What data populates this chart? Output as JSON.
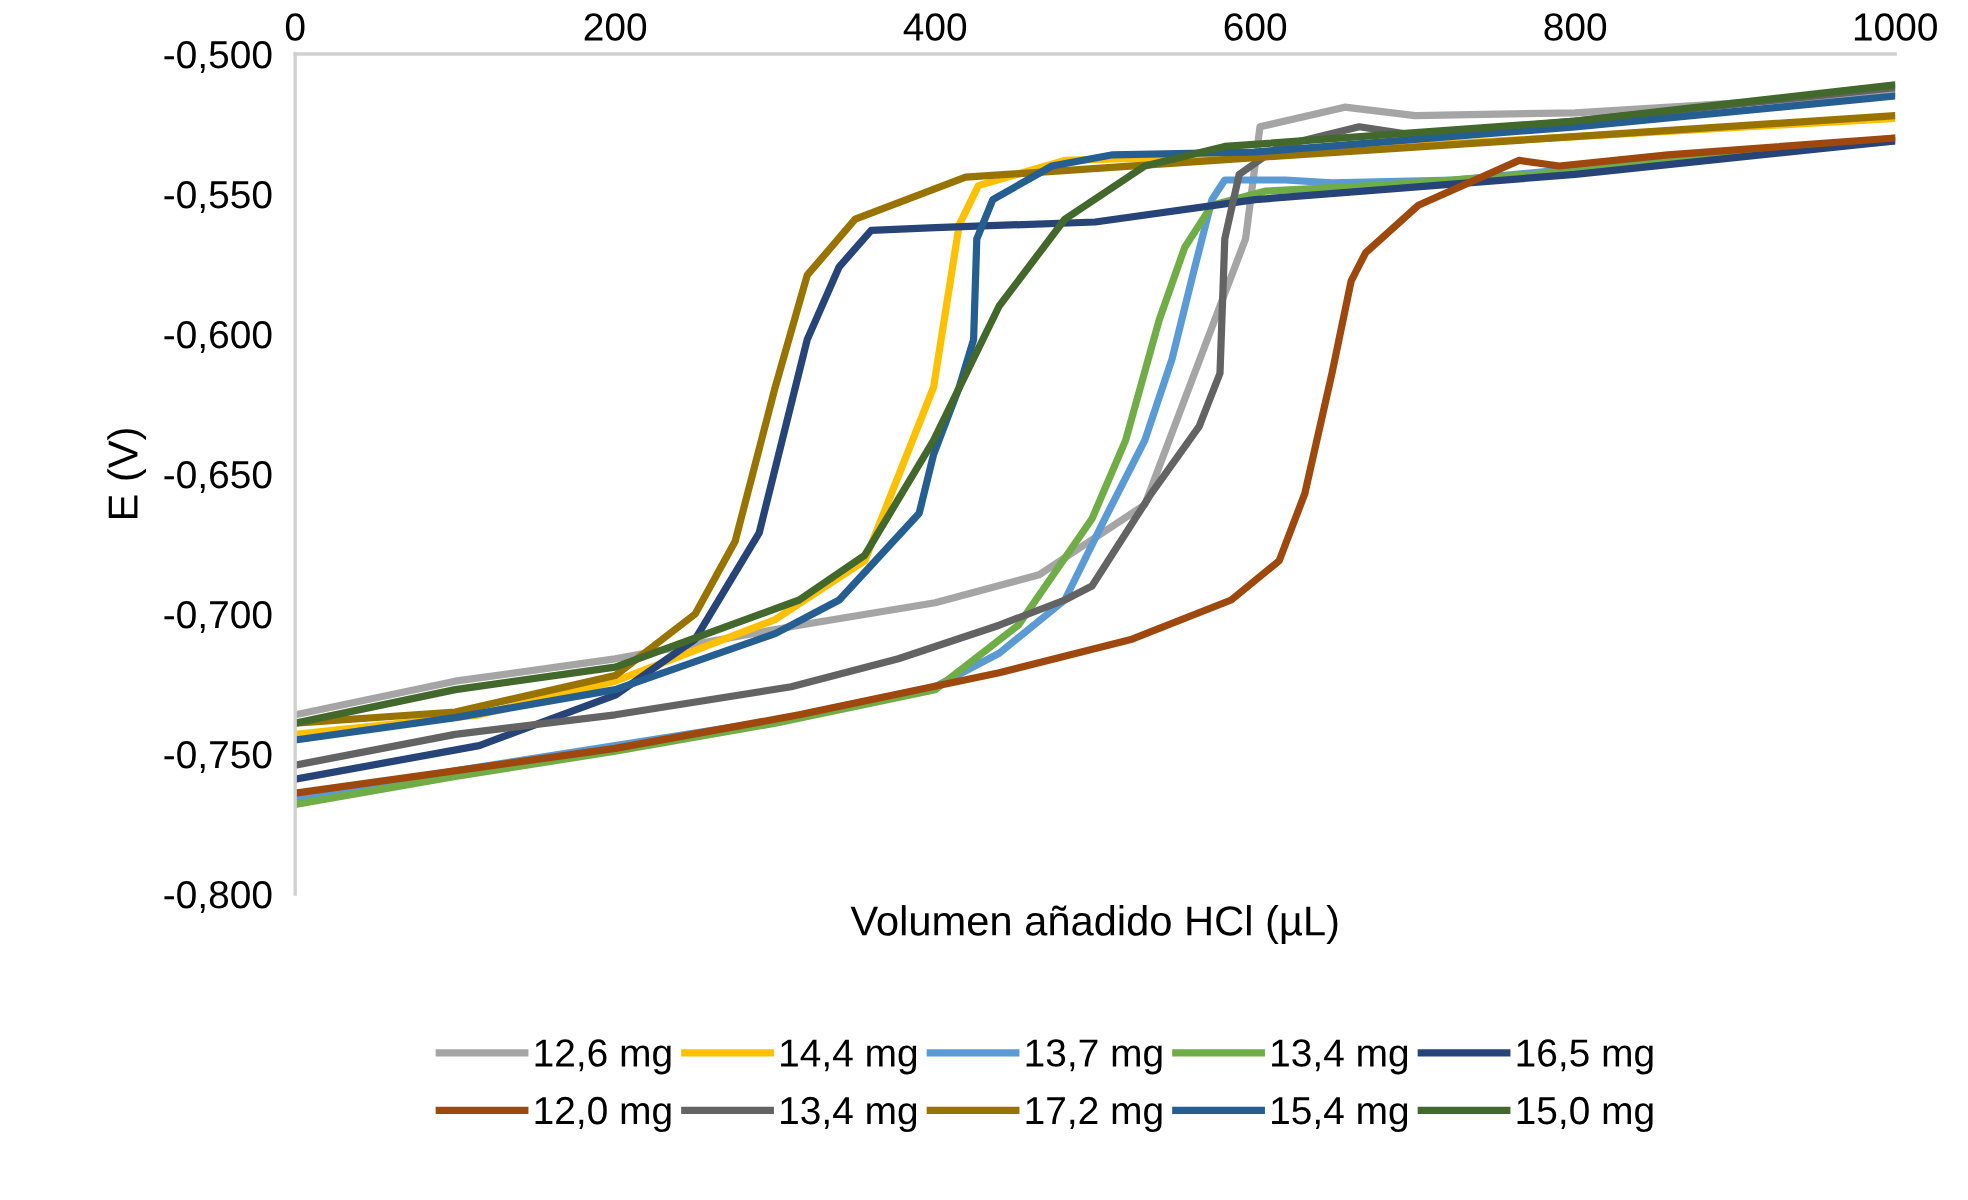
{
  "chart_data": {
    "type": "line",
    "xlabel": "Volumen añadido HCl (µL)",
    "ylabel": "E (V)",
    "xlim": [
      0,
      1000
    ],
    "xticks": [
      0,
      200,
      400,
      600,
      800,
      1000
    ],
    "ylim": [
      -0.8,
      -0.5
    ],
    "yticks": [
      {
        "value": -0.8,
        "label": "-0,800"
      },
      {
        "value": -0.75,
        "label": "-0,750"
      },
      {
        "value": -0.7,
        "label": "-0,700"
      },
      {
        "value": -0.65,
        "label": "-0,650"
      },
      {
        "value": -0.6,
        "label": "-0,600"
      },
      {
        "value": -0.55,
        "label": "-0,550"
      },
      {
        "value": -0.5,
        "label": "-0,500"
      }
    ],
    "grid": false,
    "legend": "bottom",
    "marker": "none",
    "line_style": "solid",
    "series": [
      {
        "name": "12,6 mg",
        "color": "#a5a5a5",
        "x": [
          0,
          100,
          200,
          315,
          400,
          465,
          531,
          578,
          594,
          603,
          656,
          700,
          800,
          1000
        ],
        "values": [
          -0.736,
          -0.724,
          -0.716,
          -0.704,
          -0.696,
          -0.686,
          -0.661,
          -0.59,
          -0.566,
          -0.526,
          -0.519,
          -0.522,
          -0.521,
          -0.514
        ]
      },
      {
        "name": "14,4 mg",
        "color": "#ffc000",
        "x": [
          0,
          115,
          200,
          300,
          356,
          399,
          415,
          427,
          481,
          600,
          1000
        ],
        "values": [
          -0.743,
          -0.736,
          -0.724,
          -0.702,
          -0.681,
          -0.619,
          -0.561,
          -0.547,
          -0.538,
          -0.536,
          -0.523
        ]
      },
      {
        "name": "13,7 mg",
        "color": "#5b9bd5",
        "x": [
          0,
          100,
          200,
          300,
          400,
          440,
          481,
          506,
          531,
          548,
          561,
          573,
          581,
          619,
          648,
          724,
          800,
          1000
        ],
        "values": [
          -0.766,
          -0.756,
          -0.747,
          -0.738,
          -0.726,
          -0.714,
          -0.695,
          -0.666,
          -0.638,
          -0.609,
          -0.579,
          -0.552,
          -0.545,
          -0.545,
          -0.546,
          -0.545,
          -0.541,
          -0.531
        ]
      },
      {
        "name": "13,4 mg",
        "color": "#70ad47",
        "x": [
          0,
          100,
          200,
          300,
          400,
          452,
          498,
          519,
          540,
          556,
          573,
          606,
          673,
          800,
          1000
        ],
        "values": [
          -0.768,
          -0.758,
          -0.749,
          -0.739,
          -0.727,
          -0.704,
          -0.666,
          -0.638,
          -0.595,
          -0.569,
          -0.554,
          -0.549,
          -0.547,
          -0.542,
          -0.53
        ]
      },
      {
        "name": "16,5 mg",
        "color": "#264478",
        "x": [
          0,
          115,
          200,
          250,
          290,
          320,
          340,
          360,
          400,
          500,
          600,
          800,
          1000
        ],
        "values": [
          -0.759,
          -0.747,
          -0.729,
          -0.709,
          -0.671,
          -0.602,
          -0.576,
          -0.563,
          -0.562,
          -0.56,
          -0.552,
          -0.543,
          -0.531
        ]
      },
      {
        "name": "12,0 mg",
        "color": "#9e480e",
        "x": [
          0,
          200,
          315,
          440,
          523,
          585,
          615,
          631,
          648,
          660,
          669,
          702,
          765,
          790,
          858,
          1000
        ],
        "values": [
          -0.764,
          -0.748,
          -0.736,
          -0.721,
          -0.709,
          -0.695,
          -0.681,
          -0.657,
          -0.614,
          -0.581,
          -0.571,
          -0.554,
          -0.538,
          -0.54,
          -0.536,
          -0.53
        ]
      },
      {
        "name": "13,4 mg",
        "color": "#636363",
        "x": [
          0,
          100,
          200,
          310,
          377,
          440,
          481,
          498,
          535,
          565,
          578,
          581,
          590,
          615,
          665,
          700,
          800,
          1000
        ],
        "values": [
          -0.754,
          -0.743,
          -0.736,
          -0.726,
          -0.716,
          -0.704,
          -0.695,
          -0.69,
          -0.657,
          -0.633,
          -0.614,
          -0.566,
          -0.543,
          -0.533,
          -0.526,
          -0.529,
          -0.524,
          -0.512
        ]
      },
      {
        "name": "17,2 mg",
        "color": "#997300",
        "x": [
          0,
          100,
          200,
          250,
          275,
          300,
          320,
          350,
          419,
          600,
          1000
        ],
        "values": [
          -0.739,
          -0.735,
          -0.722,
          -0.7,
          -0.674,
          -0.619,
          -0.579,
          -0.559,
          -0.544,
          -0.537,
          -0.522
        ]
      },
      {
        "name": "15,4 mg",
        "color": "#255e91",
        "x": [
          0,
          100,
          200,
          300,
          340,
          390,
          399,
          415,
          424,
          426,
          436,
          473,
          511,
          600,
          800,
          1000
        ],
        "values": [
          -0.745,
          -0.737,
          -0.727,
          -0.707,
          -0.695,
          -0.664,
          -0.643,
          -0.619,
          -0.602,
          -0.566,
          -0.552,
          -0.54,
          -0.536,
          -0.535,
          -0.526,
          -0.515
        ]
      },
      {
        "name": "15,0 mg",
        "color": "#43682b",
        "x": [
          0,
          100,
          200,
          315,
          356,
          399,
          440,
          481,
          531,
          581,
          800,
          1000
        ],
        "values": [
          -0.739,
          -0.727,
          -0.719,
          -0.695,
          -0.679,
          -0.638,
          -0.59,
          -0.559,
          -0.54,
          -0.533,
          -0.524,
          -0.511
        ]
      }
    ]
  }
}
